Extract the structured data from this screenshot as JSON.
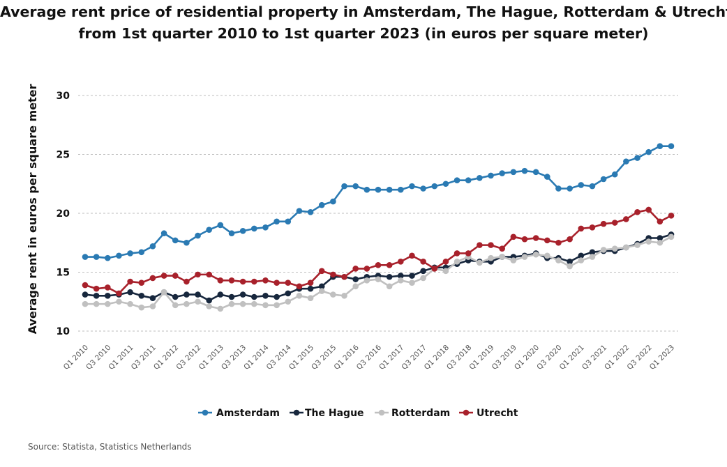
{
  "title_line1": "Average rent price of residential property in Amsterdam, The Hague, Rotterdam & Utrecht",
  "title_line2": "from 1st quarter 2010 to 1st quarter 2023 (in euros per square meter)",
  "source": "Source: Statista, Statistics Netherlands",
  "chart_data": {
    "type": "line",
    "title": "Average rent price of residential property in Amsterdam, The Hague, Rotterdam & Utrecht from 1st quarter 2010 to 1st quarter 2023 (in euros per square meter)",
    "ylabel": "Average rent in euros per square meter",
    "xlabel": "",
    "ylim": [
      10,
      30
    ],
    "yticks": [
      10,
      15,
      20,
      25,
      30
    ],
    "grid": "horizontal dashed",
    "legend": "bottom",
    "x": [
      "Q1 2010",
      "Q2 2010",
      "Q3 2010",
      "Q4 2010",
      "Q1 2011",
      "Q2 2011",
      "Q3 2011",
      "Q4 2011",
      "Q1 2012",
      "Q2 2012",
      "Q3 2012",
      "Q4 2012",
      "Q1 2013",
      "Q2 2013",
      "Q3 2013",
      "Q4 2013",
      "Q1 2014",
      "Q2 2014",
      "Q3 2014",
      "Q4 2014",
      "Q1 2015",
      "Q2 2015",
      "Q3 2015",
      "Q4 2015",
      "Q1 2016",
      "Q2 2016",
      "Q3 2016",
      "Q4 2016",
      "Q1 2017",
      "Q2 2017",
      "Q3 2017",
      "Q4 2017",
      "Q1 2018",
      "Q2 2018",
      "Q3 2018",
      "Q4 2018",
      "Q1 2019",
      "Q2 2019",
      "Q3 2019",
      "Q4 2019",
      "Q1 2020",
      "Q2 2020",
      "Q3 2020",
      "Q4 2020",
      "Q1 2021",
      "Q2 2021",
      "Q3 2021",
      "Q4 2021",
      "Q1 2022",
      "Q2 2022",
      "Q3 2022",
      "Q4 2022",
      "Q1 2023"
    ],
    "x_tick_labels": [
      "Q1 2010",
      "Q3 2010",
      "Q1 2011",
      "Q3 2011",
      "Q1 2012",
      "Q3 2012",
      "Q1 2013",
      "Q3 2013",
      "Q1 2014",
      "Q3 2014",
      "Q1 2015",
      "Q3 2015",
      "Q1 2016",
      "Q3 2016",
      "Q1 2017",
      "Q3 2017",
      "Q1 2018",
      "Q3 2018",
      "Q1 2019",
      "Q3 2019",
      "Q1 2020",
      "Q3 2020",
      "Q1 2021",
      "Q3 2021",
      "Q1 2022",
      "Q3 2022",
      "Q1 2023"
    ],
    "series": [
      {
        "name": "Amsterdam",
        "color": "#2a7ab3",
        "values": [
          16.3,
          16.3,
          16.2,
          16.4,
          16.6,
          16.7,
          17.2,
          18.3,
          17.7,
          17.5,
          18.1,
          18.6,
          19.0,
          18.3,
          18.5,
          18.7,
          18.8,
          19.3,
          19.3,
          20.2,
          20.1,
          20.7,
          21.0,
          22.3,
          22.3,
          22.0,
          22.0,
          22.0,
          22.0,
          22.3,
          22.1,
          22.3,
          22.5,
          22.8,
          22.8,
          23.0,
          23.2,
          23.4,
          23.5,
          23.6,
          23.5,
          23.1,
          22.1,
          22.1,
          22.4,
          22.3,
          22.9,
          23.3,
          24.4,
          24.7,
          25.2,
          25.7,
          25.7
        ]
      },
      {
        "name": "The Hague",
        "color": "#17273d",
        "values": [
          13.1,
          13.0,
          13.0,
          13.1,
          13.3,
          13.0,
          12.8,
          13.3,
          12.9,
          13.1,
          13.1,
          12.6,
          13.1,
          12.9,
          13.1,
          12.9,
          13.0,
          12.9,
          13.2,
          13.6,
          13.6,
          13.8,
          14.6,
          14.6,
          14.4,
          14.6,
          14.7,
          14.6,
          14.7,
          14.7,
          15.1,
          15.4,
          15.4,
          15.7,
          16.0,
          15.9,
          15.9,
          16.3,
          16.3,
          16.4,
          16.6,
          16.2,
          16.2,
          15.9,
          16.4,
          16.7,
          16.8,
          16.8,
          17.1,
          17.4,
          17.9,
          17.9,
          18.2
        ]
      },
      {
        "name": "Rotterdam",
        "color": "#c0c0c0",
        "values": [
          12.3,
          12.3,
          12.3,
          12.5,
          12.3,
          12.0,
          12.1,
          13.3,
          12.2,
          12.3,
          12.5,
          12.1,
          11.9,
          12.3,
          12.3,
          12.3,
          12.2,
          12.2,
          12.5,
          13.0,
          12.8,
          13.4,
          13.1,
          13.0,
          13.8,
          14.3,
          14.4,
          13.8,
          14.3,
          14.1,
          14.5,
          15.3,
          15.1,
          15.9,
          16.3,
          15.8,
          16.2,
          16.3,
          16.0,
          16.3,
          16.5,
          16.4,
          16.0,
          15.5,
          16.0,
          16.3,
          16.9,
          17.0,
          17.1,
          17.3,
          17.6,
          17.5,
          18.0
        ]
      },
      {
        "name": "Utrecht",
        "color": "#a8212b",
        "values": [
          13.9,
          13.6,
          13.7,
          13.2,
          14.2,
          14.1,
          14.5,
          14.7,
          14.7,
          14.2,
          14.8,
          14.8,
          14.3,
          14.3,
          14.2,
          14.2,
          14.3,
          14.1,
          14.1,
          13.8,
          14.1,
          15.1,
          14.8,
          14.6,
          15.3,
          15.3,
          15.6,
          15.6,
          15.9,
          16.4,
          15.9,
          15.3,
          15.9,
          16.6,
          16.6,
          17.3,
          17.3,
          17.0,
          18.0,
          17.8,
          17.9,
          17.7,
          17.5,
          17.8,
          18.7,
          18.8,
          19.1,
          19.2,
          19.5,
          20.1,
          20.3,
          19.3,
          19.8
        ]
      }
    ]
  }
}
